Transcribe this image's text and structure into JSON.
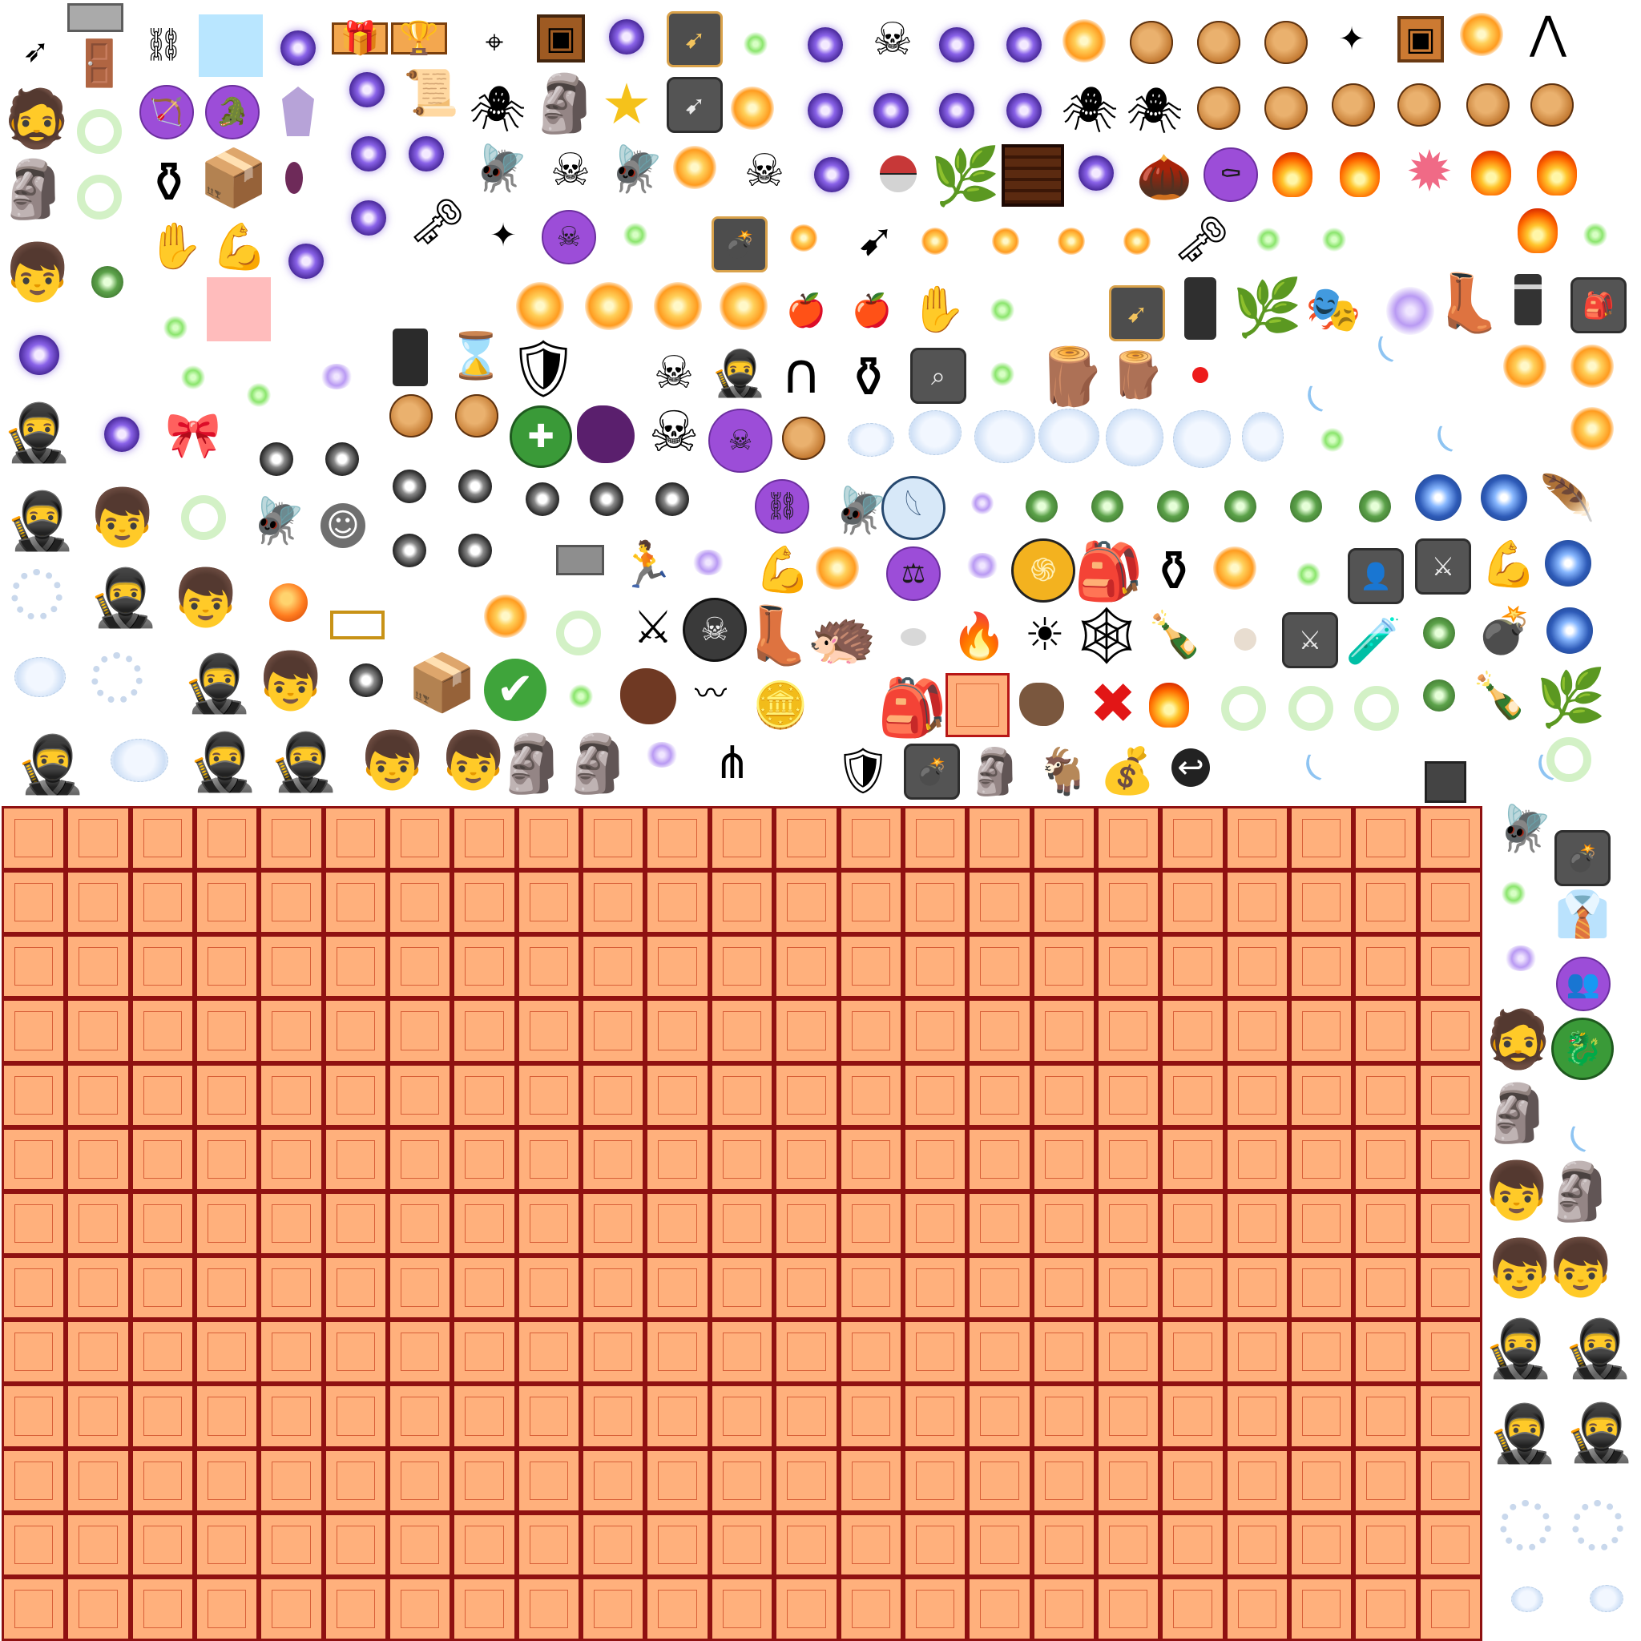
{
  "atlas": {
    "title": "",
    "inventory_grid": {
      "columns": 23,
      "rows": 13
    }
  },
  "colors": {
    "background": "#ffffff",
    "grid_fill": "#ffb07c",
    "grid_border": "#8f1111",
    "gray_swatch": "#aaaaaa",
    "blue_swatch": "#b9e6ff",
    "pink_swatch": "#ffbcbc"
  },
  "sprites": [
    {
      "name": "arrow-icon",
      "glyph": "➶"
    },
    {
      "name": "double-door-icon",
      "glyph": "🚪"
    },
    {
      "name": "chain-link-icon",
      "glyph": "⛓"
    },
    {
      "name": "gift-crate-icon",
      "glyph": "🎁"
    },
    {
      "name": "trophy-crate-icon",
      "glyph": "🏆"
    },
    {
      "name": "compass-icon",
      "glyph": "⌖"
    },
    {
      "name": "wooden-crate-icon",
      "glyph": "▣"
    },
    {
      "name": "bow-tile-icon",
      "glyph": "➹"
    },
    {
      "name": "skull-icon",
      "glyph": "☠"
    },
    {
      "name": "shuriken-icon",
      "glyph": "✦"
    },
    {
      "name": "spider-icon",
      "glyph": "🕷"
    },
    {
      "name": "star-icon",
      "glyph": "★"
    },
    {
      "name": "bomb-icon",
      "glyph": "💣"
    },
    {
      "name": "key-icon",
      "glyph": "🗝"
    },
    {
      "name": "bag-icon",
      "glyph": "🎒"
    },
    {
      "name": "horseshoe-icon",
      "glyph": "∩"
    },
    {
      "name": "magnifier-icon",
      "glyph": "⌕"
    },
    {
      "name": "heart-icon",
      "glyph": "❤"
    },
    {
      "name": "wing-icon",
      "glyph": "𓆩"
    },
    {
      "name": "spiral-icon",
      "glyph": "֍"
    },
    {
      "name": "sword-icon",
      "glyph": "⚔"
    },
    {
      "name": "muscle-icon",
      "glyph": "💪"
    },
    {
      "name": "runner-icon",
      "glyph": "🏃"
    },
    {
      "name": "check-icon",
      "glyph": "✔"
    },
    {
      "name": "cross-icon",
      "glyph": "✖"
    },
    {
      "name": "scroll-icon",
      "glyph": "📜"
    },
    {
      "name": "hourglass-icon",
      "glyph": "⌛"
    },
    {
      "name": "vase-icon",
      "glyph": "⚱"
    },
    {
      "name": "apple-icon",
      "glyph": "🍎"
    },
    {
      "name": "tie-icon",
      "glyph": "👔"
    },
    {
      "name": "boot-icon",
      "glyph": "👢"
    },
    {
      "name": "web-icon",
      "glyph": "🕸"
    },
    {
      "name": "potion-icon",
      "glyph": "🧪"
    },
    {
      "name": "armadillo-icon",
      "glyph": "🦔"
    },
    {
      "name": "tree-stump-icon",
      "glyph": "🪵"
    },
    {
      "name": "mask-icon",
      "glyph": "🎭"
    },
    {
      "name": "ninja-icon",
      "glyph": "🥷"
    },
    {
      "name": "boy-icon",
      "glyph": "👦"
    },
    {
      "name": "totem-icon",
      "glyph": "🗿"
    },
    {
      "name": "warrior-icon",
      "glyph": "🧔"
    },
    {
      "name": "user-tile-icon",
      "glyph": "👤"
    },
    {
      "name": "dragon-icon",
      "glyph": "🐉"
    },
    {
      "name": "goat-icon",
      "glyph": "🐐"
    },
    {
      "name": "money-bag-icon",
      "glyph": "💰"
    },
    {
      "name": "fire-pit-icon",
      "glyph": "🔥"
    },
    {
      "name": "explosion-icon",
      "glyph": "✹"
    },
    {
      "name": "plus-icon",
      "glyph": "✚"
    },
    {
      "name": "silhouette-icon",
      "glyph": "👥"
    },
    {
      "name": "feather-icon",
      "glyph": "🪶"
    },
    {
      "name": "hook-icon",
      "glyph": "↩"
    },
    {
      "name": "box-icon",
      "glyph": "📦"
    },
    {
      "name": "backpack-icon",
      "glyph": "🎒"
    },
    {
      "name": "bush-icon",
      "glyph": "🌿"
    },
    {
      "name": "mask-face-icon",
      "glyph": "◕"
    },
    {
      "name": "shield-icon",
      "glyph": "🛡"
    },
    {
      "name": "coin-icon",
      "glyph": "🪙"
    },
    {
      "name": "pearl-icon",
      "glyph": "⚪"
    },
    {
      "name": "bottle-icon",
      "glyph": "🍾"
    },
    {
      "name": "orb-burst-icon",
      "glyph": "✺"
    }
  ]
}
